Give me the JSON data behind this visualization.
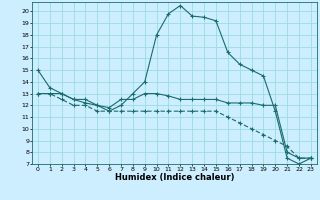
{
  "title": "",
  "xlabel": "Humidex (Indice chaleur)",
  "bg_color": "#cceeff",
  "line_color": "#1a6b6b",
  "grid_color": "#99dddd",
  "series1_x": [
    0,
    1,
    2,
    3,
    4,
    5,
    6,
    7,
    8,
    9,
    10,
    11,
    12,
    13,
    14,
    15,
    16,
    17,
    18,
    19,
    20,
    21,
    22,
    23
  ],
  "series1_y": [
    15.0,
    13.5,
    13.0,
    12.5,
    12.2,
    12.0,
    11.5,
    12.0,
    13.0,
    14.0,
    18.0,
    19.8,
    20.5,
    19.6,
    19.5,
    19.2,
    16.5,
    15.5,
    15.0,
    14.5,
    11.5,
    7.5,
    7.0,
    7.5
  ],
  "series2_x": [
    0,
    1,
    2,
    3,
    4,
    5,
    6,
    7,
    8,
    9,
    10,
    11,
    12,
    13,
    14,
    15,
    16,
    17,
    18,
    19,
    20,
    21,
    22,
    23
  ],
  "series2_y": [
    13.0,
    13.0,
    13.0,
    12.5,
    12.5,
    12.0,
    11.8,
    12.5,
    12.5,
    13.0,
    13.0,
    12.8,
    12.5,
    12.5,
    12.5,
    12.5,
    12.2,
    12.2,
    12.2,
    12.0,
    12.0,
    8.0,
    7.5,
    7.5
  ],
  "series3_x": [
    0,
    1,
    2,
    3,
    4,
    5,
    6,
    7,
    8,
    9,
    10,
    11,
    12,
    13,
    14,
    15,
    16,
    17,
    18,
    19,
    20,
    21,
    22,
    23
  ],
  "series3_y": [
    13.0,
    13.0,
    12.5,
    12.0,
    12.0,
    11.5,
    11.5,
    11.5,
    11.5,
    11.5,
    11.5,
    11.5,
    11.5,
    11.5,
    11.5,
    11.5,
    11.0,
    10.5,
    10.0,
    9.5,
    9.0,
    8.5,
    7.5,
    7.5
  ],
  "xlim": [
    -0.5,
    23.5
  ],
  "ylim": [
    7,
    20.8
  ],
  "yticks": [
    7,
    8,
    9,
    10,
    11,
    12,
    13,
    14,
    15,
    16,
    17,
    18,
    19,
    20
  ],
  "xticks": [
    0,
    1,
    2,
    3,
    4,
    5,
    6,
    7,
    8,
    9,
    10,
    11,
    12,
    13,
    14,
    15,
    16,
    17,
    18,
    19,
    20,
    21,
    22,
    23
  ]
}
